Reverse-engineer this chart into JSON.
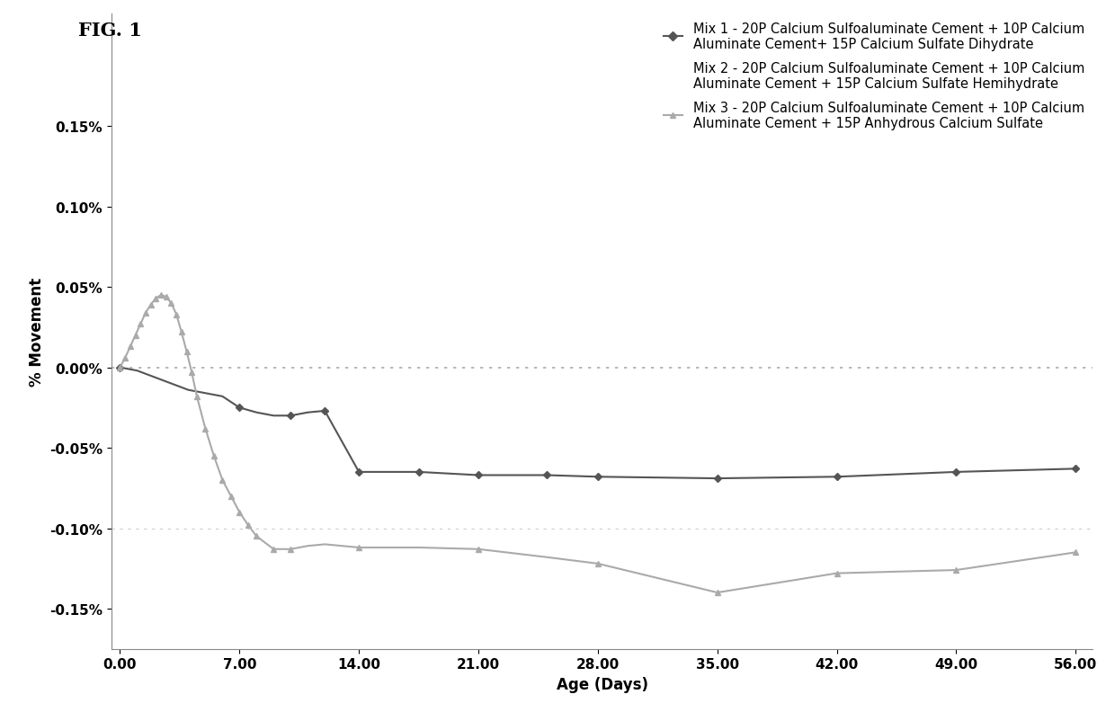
{
  "title": "FIG. 1",
  "xlabel": "Age (Days)",
  "ylabel": "% Movement",
  "background_color": "#ffffff",
  "xlim": [
    -0.5,
    57
  ],
  "ylim": [
    -0.175,
    0.22
  ],
  "yticks": [
    -0.15,
    -0.1,
    -0.05,
    0.0,
    0.05,
    0.1,
    0.15
  ],
  "xticks": [
    0.0,
    7.0,
    14.0,
    21.0,
    28.0,
    35.0,
    42.0,
    49.0,
    56.0
  ],
  "mix1_color": "#555555",
  "mix2_color": "#888888",
  "mix3_color": "#aaaaaa",
  "mix1_x": [
    0.0,
    0.5,
    1.0,
    1.5,
    2.0,
    2.5,
    3.0,
    3.5,
    4.0,
    5.0,
    6.0,
    7.0,
    8.0,
    9.0,
    10.0,
    11.0,
    12.0,
    14.0,
    17.5,
    21.0,
    25.0,
    28.0,
    35.0,
    42.0,
    49.0,
    56.0
  ],
  "mix1_y": [
    0.0,
    -0.001,
    -0.002,
    -0.004,
    -0.006,
    -0.008,
    -0.01,
    -0.012,
    -0.014,
    -0.016,
    -0.018,
    -0.025,
    -0.028,
    -0.03,
    -0.03,
    -0.028,
    -0.027,
    -0.065,
    -0.065,
    -0.067,
    -0.067,
    -0.068,
    -0.069,
    -0.068,
    -0.065,
    -0.063
  ],
  "mix3_x": [
    0.0,
    0.3,
    0.6,
    0.9,
    1.2,
    1.5,
    1.8,
    2.1,
    2.4,
    2.7,
    3.0,
    3.3,
    3.6,
    3.9,
    4.2,
    4.5,
    5.0,
    5.5,
    6.0,
    6.5,
    7.0,
    7.5,
    8.0,
    9.0,
    10.0,
    11.0,
    12.0,
    14.0,
    17.5,
    21.0,
    25.0,
    28.0,
    35.0,
    42.0,
    49.0,
    56.0
  ],
  "mix3_y": [
    0.0,
    0.006,
    0.013,
    0.02,
    0.027,
    0.034,
    0.039,
    0.043,
    0.045,
    0.044,
    0.04,
    0.033,
    0.022,
    0.01,
    -0.003,
    -0.018,
    -0.038,
    -0.055,
    -0.07,
    -0.08,
    -0.09,
    -0.098,
    -0.105,
    -0.113,
    -0.113,
    -0.111,
    -0.11,
    -0.112,
    -0.112,
    -0.113,
    -0.118,
    -0.122,
    -0.14,
    -0.128,
    -0.126,
    -0.115
  ],
  "legend_labels": [
    "Mix 1 - 20P Calcium Sulfoaluminate Cement + 10P Calcium\nAluminate Cement+ 15P Calcium Sulfate Dihydrate",
    "Mix 2 - 20P Calcium Sulfoaluminate Cement + 10P Calcium\nAluminate Cement + 15P Calcium Sulfate Hemihydrate",
    "Mix 3 - 20P Calcium Sulfoaluminate Cement + 10P Calcium\nAluminate Cement + 15P Anhydrous Calcium Sulfate"
  ],
  "fontsize_label": 12,
  "fontsize_tick": 11,
  "fontsize_title": 15,
  "fontsize_legend": 10.5
}
